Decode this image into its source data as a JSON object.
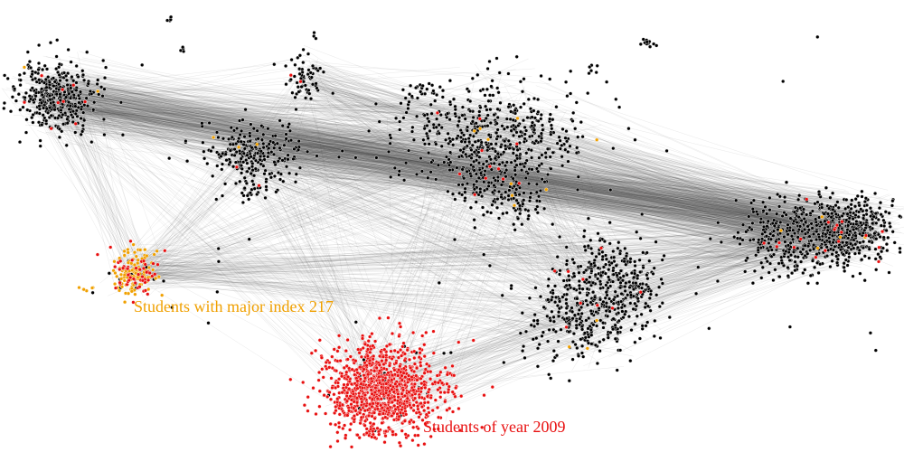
{
  "annotations": {
    "major": {
      "text": "Students with major index 217",
      "color": "#f0a000"
    },
    "year": {
      "text": "Students of year 2009",
      "color": "#e81010"
    }
  },
  "colors": {
    "background": "#ffffff",
    "node_default": "#000000",
    "node_major": "#f0a000",
    "node_year": "#e81010",
    "edge": "#4a4a4a",
    "node_outline": "#ffffff"
  }
}
